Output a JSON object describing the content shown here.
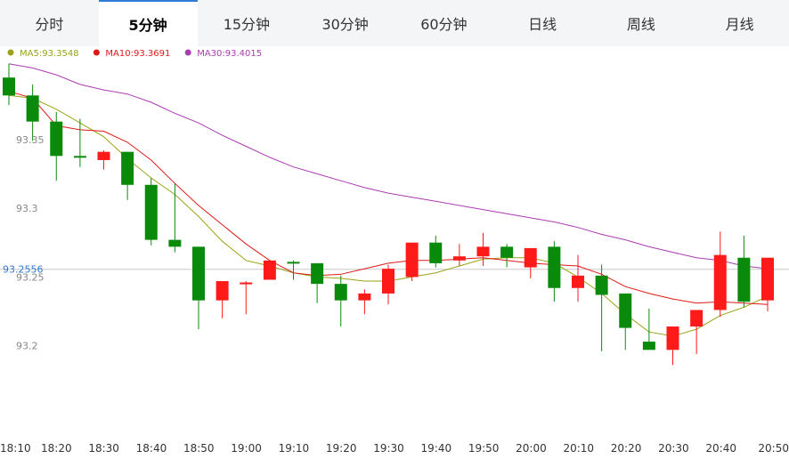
{
  "tabs": [
    "分时",
    "5分钟",
    "15分钟",
    "30分钟",
    "60分钟",
    "日线",
    "周线",
    "月线"
  ],
  "active_tab": 1,
  "legend": [
    {
      "text": "MA5:93.3548",
      "color": "#9aa315"
    },
    {
      "text": "MA10:93.3691",
      "color": "#e01818"
    },
    {
      "text": "MA30:93.4015",
      "color": "#a93cb0"
    }
  ],
  "chart_data": {
    "type": "candlestick",
    "up_color": "#ff1a1a",
    "down_color": "#0a8a0a",
    "ylim": [
      93.15,
      93.41
    ],
    "y_ticks": [
      93.35,
      93.3,
      93.25,
      93.2
    ],
    "y_tick_labels": [
      "93.35",
      "93.3",
      "93.25",
      "93.2"
    ],
    "current_price": 93.2556,
    "current_price_label": "93.2556",
    "x_tick_labels": [
      "18:10",
      "18:20",
      "18:30",
      "18:40",
      "18:50",
      "19:00",
      "19:10",
      "19:20",
      "19:30",
      "19:40",
      "19:50",
      "20:00",
      "20:10",
      "20:20",
      "20:30",
      "20:40",
      "20:50"
    ],
    "candles": [
      {
        "o": 93.395,
        "h": 93.405,
        "l": 93.375,
        "c": 93.382
      },
      {
        "o": 93.382,
        "h": 93.39,
        "l": 93.349,
        "c": 93.363
      },
      {
        "o": 93.363,
        "h": 93.37,
        "l": 93.32,
        "c": 93.338
      },
      {
        "o": 93.338,
        "h": 93.365,
        "l": 93.33,
        "c": 93.337
      },
      {
        "o": 93.335,
        "h": 93.342,
        "l": 93.328,
        "c": 93.341
      },
      {
        "o": 93.341,
        "h": 93.341,
        "l": 93.306,
        "c": 93.317
      },
      {
        "o": 93.317,
        "h": 93.322,
        "l": 93.273,
        "c": 93.277
      },
      {
        "o": 93.277,
        "h": 93.318,
        "l": 93.268,
        "c": 93.272
      },
      {
        "o": 93.272,
        "h": 93.272,
        "l": 93.212,
        "c": 93.233
      },
      {
        "o": 93.233,
        "h": 93.246,
        "l": 93.22,
        "c": 93.247
      },
      {
        "o": 93.245,
        "h": 93.247,
        "l": 93.223,
        "c": 93.246
      },
      {
        "o": 93.248,
        "h": 93.262,
        "l": 93.248,
        "c": 93.262
      },
      {
        "o": 93.261,
        "h": 93.262,
        "l": 93.248,
        "c": 93.26
      },
      {
        "o": 93.26,
        "h": 93.26,
        "l": 93.231,
        "c": 93.245
      },
      {
        "o": 93.245,
        "h": 93.251,
        "l": 93.214,
        "c": 93.233
      },
      {
        "o": 93.233,
        "h": 93.241,
        "l": 93.223,
        "c": 93.238
      },
      {
        "o": 93.238,
        "h": 93.259,
        "l": 93.23,
        "c": 93.256
      },
      {
        "o": 93.25,
        "h": 93.275,
        "l": 93.247,
        "c": 93.275
      },
      {
        "o": 93.275,
        "h": 93.28,
        "l": 93.257,
        "c": 93.26
      },
      {
        "o": 93.262,
        "h": 93.274,
        "l": 93.258,
        "c": 93.265
      },
      {
        "o": 93.265,
        "h": 93.282,
        "l": 93.258,
        "c": 93.272
      },
      {
        "o": 93.272,
        "h": 93.274,
        "l": 93.257,
        "c": 93.264
      },
      {
        "o": 93.257,
        "h": 93.271,
        "l": 93.249,
        "c": 93.271
      },
      {
        "o": 93.272,
        "h": 93.276,
        "l": 93.232,
        "c": 93.242
      },
      {
        "o": 93.242,
        "h": 93.266,
        "l": 93.232,
        "c": 93.251
      },
      {
        "o": 93.251,
        "h": 93.259,
        "l": 93.196,
        "c": 93.237
      },
      {
        "o": 93.238,
        "h": 93.238,
        "l": 93.197,
        "c": 93.213
      },
      {
        "o": 93.203,
        "h": 93.227,
        "l": 93.198,
        "c": 93.197
      },
      {
        "o": 93.197,
        "h": 93.214,
        "l": 93.186,
        "c": 93.214
      },
      {
        "o": 93.214,
        "h": 93.225,
        "l": 93.194,
        "c": 93.226
      },
      {
        "o": 93.226,
        "h": 93.283,
        "l": 93.221,
        "c": 93.266
      },
      {
        "o": 93.264,
        "h": 93.28,
        "l": 93.228,
        "c": 93.232
      },
      {
        "o": 93.233,
        "h": 93.264,
        "l": 93.225,
        "c": 93.264
      }
    ],
    "series": [
      {
        "name": "MA5",
        "color": "#9aa315",
        "values": [
          93.382,
          93.38,
          93.372,
          93.362,
          93.352,
          93.336,
          93.322,
          93.31,
          93.294,
          93.276,
          93.262,
          93.258,
          93.253,
          93.25,
          93.249,
          93.247,
          93.247,
          93.25,
          93.253,
          93.258,
          93.263,
          93.264,
          93.264,
          93.26,
          93.25,
          93.238,
          93.223,
          93.21,
          93.207,
          93.212,
          93.222,
          93.228,
          93.236
        ]
      },
      {
        "name": "MA10",
        "color": "#e01818",
        "values": [
          93.385,
          93.38,
          93.36,
          93.357,
          93.356,
          93.348,
          93.335,
          93.318,
          93.302,
          93.288,
          93.274,
          93.262,
          93.253,
          93.251,
          93.252,
          93.256,
          93.26,
          93.262,
          93.262,
          93.263,
          93.264,
          93.262,
          93.26,
          93.259,
          93.258,
          93.252,
          93.243,
          93.238,
          93.234,
          93.231,
          93.232,
          93.231,
          93.23
        ]
      },
      {
        "name": "MA30",
        "color": "#a93cb0",
        "values": [
          93.405,
          93.402,
          93.397,
          93.39,
          93.386,
          93.383,
          93.377,
          93.369,
          93.362,
          93.353,
          93.345,
          93.337,
          93.33,
          93.325,
          93.32,
          93.315,
          93.311,
          93.308,
          93.305,
          93.302,
          93.299,
          93.296,
          93.293,
          93.29,
          93.286,
          93.281,
          93.277,
          93.272,
          93.268,
          93.264,
          93.262,
          93.258,
          93.256
        ]
      }
    ]
  }
}
